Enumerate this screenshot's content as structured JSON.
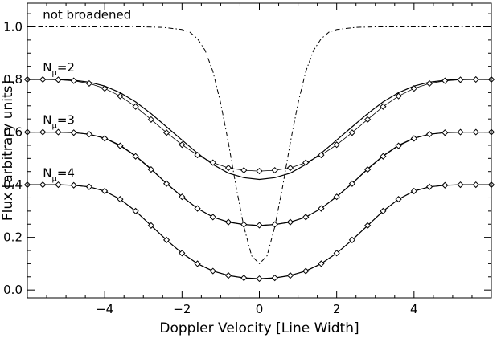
{
  "chart_data": {
    "type": "line",
    "xlabel": "Doppler Velocity [Line Width]",
    "ylabel": "Flux [arbitrary units]",
    "xlim": [
      -6,
      6
    ],
    "ylim": [
      -0.03,
      1.09
    ],
    "xticks": [
      -4,
      -2,
      0,
      2,
      4
    ],
    "xtick_labels": [
      "−4",
      "−2",
      "0",
      "2",
      "4"
    ],
    "yticks": [
      0.0,
      0.2,
      0.4,
      0.6,
      0.8,
      1.0
    ],
    "ytick_labels": [
      "0.0",
      "0.2",
      "0.4",
      "0.6",
      "0.8",
      "1.0"
    ],
    "grid": false,
    "annotations": [
      {
        "text": "not broadened",
        "x": -5.6,
        "y": 1.03
      },
      {
        "base": "N",
        "sub": "μ",
        "rest": "=2",
        "x": -5.6,
        "y": 0.83
      },
      {
        "base": "N",
        "sub": "μ",
        "rest": "=3",
        "x": -5.6,
        "y": 0.63
      },
      {
        "base": "N",
        "sub": "μ",
        "rest": "=4",
        "x": -5.6,
        "y": 0.43
      }
    ],
    "profile_x": [
      -6.0,
      -5.6,
      -5.2,
      -4.8,
      -4.4,
      -4.0,
      -3.6,
      -3.2,
      -2.8,
      -2.4,
      -2.0,
      -1.6,
      -1.2,
      -0.8,
      -0.4,
      0.0,
      0.4,
      0.8,
      1.2,
      1.6,
      2.0,
      2.4,
      2.8,
      3.2,
      3.6,
      4.0,
      4.4,
      4.8,
      5.2,
      5.6,
      6.0
    ],
    "series": [
      {
        "style": "dashdot",
        "x": [
          -6.0,
          -3.0,
          -2.5,
          -2.0,
          -1.8,
          -1.6,
          -1.4,
          -1.2,
          -1.0,
          -0.8,
          -0.6,
          -0.4,
          -0.2,
          0.0,
          0.2,
          0.4,
          0.6,
          0.8,
          1.0,
          1.2,
          1.4,
          1.6,
          1.8,
          2.0,
          2.5,
          3.0,
          6.0
        ],
        "y": [
          1.0,
          1.0,
          0.998,
          0.99,
          0.98,
          0.955,
          0.91,
          0.83,
          0.71,
          0.56,
          0.39,
          0.24,
          0.13,
          0.1,
          0.13,
          0.24,
          0.39,
          0.56,
          0.71,
          0.83,
          0.91,
          0.955,
          0.98,
          0.99,
          0.998,
          1.0,
          1.0
        ]
      },
      {
        "style": "solid",
        "y": [
          0.8,
          0.8,
          0.8,
          0.797,
          0.79,
          0.775,
          0.75,
          0.715,
          0.67,
          0.62,
          0.57,
          0.52,
          0.477,
          0.444,
          0.427,
          0.42,
          0.427,
          0.444,
          0.477,
          0.52,
          0.57,
          0.62,
          0.67,
          0.715,
          0.75,
          0.775,
          0.79,
          0.797,
          0.8,
          0.8,
          0.8
        ]
      },
      {
        "style": "diamond",
        "y": [
          0.8,
          0.8,
          0.799,
          0.795,
          0.785,
          0.766,
          0.737,
          0.697,
          0.648,
          0.598,
          0.552,
          0.513,
          0.484,
          0.464,
          0.455,
          0.452,
          0.455,
          0.464,
          0.484,
          0.513,
          0.552,
          0.598,
          0.648,
          0.697,
          0.737,
          0.766,
          0.785,
          0.795,
          0.799,
          0.8,
          0.8
        ]
      },
      {
        "style": "solid",
        "y": [
          0.6,
          0.6,
          0.6,
          0.598,
          0.592,
          0.577,
          0.55,
          0.51,
          0.46,
          0.405,
          0.355,
          0.31,
          0.277,
          0.258,
          0.249,
          0.245,
          0.249,
          0.258,
          0.277,
          0.31,
          0.355,
          0.405,
          0.46,
          0.51,
          0.55,
          0.577,
          0.592,
          0.598,
          0.6,
          0.6,
          0.6
        ]
      },
      {
        "style": "diamond",
        "y": [
          0.6,
          0.6,
          0.6,
          0.598,
          0.592,
          0.576,
          0.548,
          0.508,
          0.458,
          0.404,
          0.354,
          0.31,
          0.277,
          0.258,
          0.249,
          0.246,
          0.249,
          0.258,
          0.277,
          0.31,
          0.354,
          0.404,
          0.458,
          0.508,
          0.548,
          0.576,
          0.592,
          0.598,
          0.6,
          0.6,
          0.6
        ]
      },
      {
        "style": "solid",
        "y": [
          0.4,
          0.4,
          0.4,
          0.398,
          0.392,
          0.376,
          0.345,
          0.3,
          0.245,
          0.19,
          0.14,
          0.1,
          0.072,
          0.055,
          0.046,
          0.043,
          0.046,
          0.055,
          0.072,
          0.1,
          0.14,
          0.19,
          0.245,
          0.3,
          0.345,
          0.376,
          0.392,
          0.398,
          0.4,
          0.4,
          0.4
        ]
      },
      {
        "style": "diamond",
        "y": [
          0.4,
          0.4,
          0.4,
          0.398,
          0.392,
          0.376,
          0.345,
          0.3,
          0.245,
          0.19,
          0.14,
          0.1,
          0.072,
          0.055,
          0.046,
          0.043,
          0.046,
          0.055,
          0.072,
          0.1,
          0.14,
          0.19,
          0.245,
          0.3,
          0.345,
          0.376,
          0.392,
          0.398,
          0.4,
          0.4,
          0.4
        ]
      }
    ]
  }
}
